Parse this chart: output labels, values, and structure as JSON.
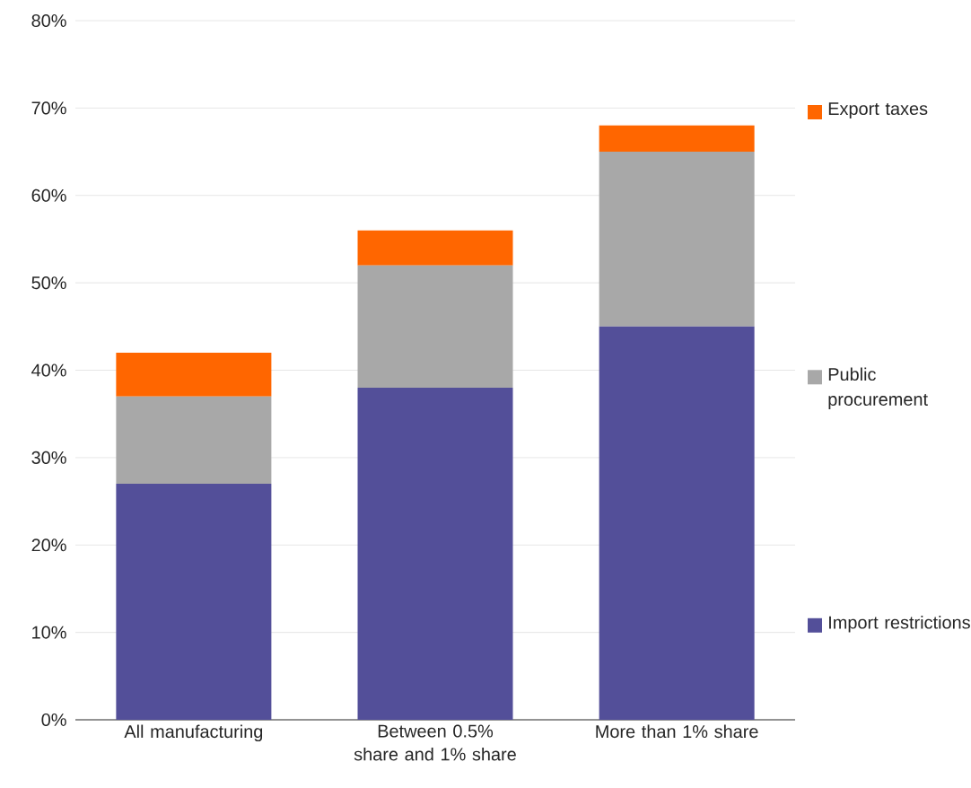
{
  "chart_data": {
    "type": "bar",
    "stacked": true,
    "categories": [
      "All manufacturing",
      "Between 0.5% share and 1% share",
      "More than 1% share"
    ],
    "series": [
      {
        "name": "Import restrictions",
        "color": "#534f99",
        "values": [
          27,
          38,
          45
        ]
      },
      {
        "name": "Public procurement",
        "color": "#a8a8a8",
        "values": [
          10,
          14,
          20
        ]
      },
      {
        "name": "Export taxes",
        "color": "#ff6600",
        "values": [
          5,
          4,
          3
        ]
      }
    ],
    "ylim": [
      0,
      80
    ],
    "yticks": [
      {
        "value": 0,
        "label": "0%"
      },
      {
        "value": 10,
        "label": "10%"
      },
      {
        "value": 20,
        "label": "20%"
      },
      {
        "value": 30,
        "label": "30%"
      },
      {
        "value": 40,
        "label": "40%"
      },
      {
        "value": 50,
        "label": "50%"
      },
      {
        "value": 60,
        "label": "60%"
      },
      {
        "value": 70,
        "label": "70%"
      },
      {
        "value": 80,
        "label": "80%"
      }
    ],
    "grid": "y",
    "legend": "right"
  }
}
